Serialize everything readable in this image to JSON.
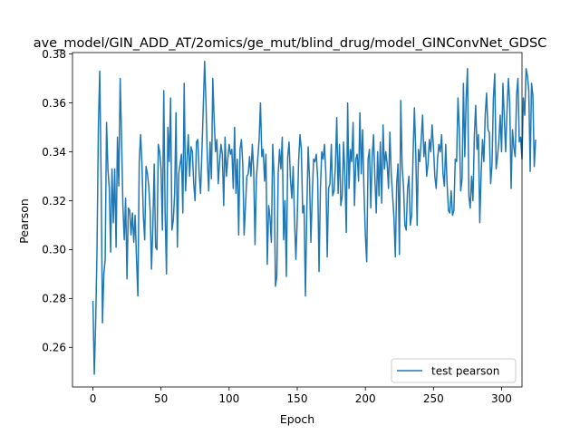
{
  "chart_data": {
    "type": "line",
    "title": "ave_model/GIN_ADD_AT/2omics/ge_mut/blind_drug/model_GINConvNet_GDSC",
    "xlabel": "Epoch",
    "ylabel": "Pearson",
    "xlim": [
      -15,
      315
    ],
    "ylim": [
      0.2438,
      0.3806
    ],
    "xticks": [
      0,
      50,
      100,
      150,
      200,
      250,
      300
    ],
    "xtick_labels": [
      "0",
      "50",
      "100",
      "150",
      "200",
      "250",
      "300"
    ],
    "yticks": [
      0.26,
      0.28,
      0.3,
      0.32,
      0.34,
      0.36,
      0.38
    ],
    "ytick_labels": [
      "0.26",
      "0.28",
      "0.30",
      "0.32",
      "0.34",
      "0.36",
      "0.38"
    ],
    "grid": false,
    "legend": {
      "position": "lower right"
    },
    "series": [
      {
        "name": "test pearson",
        "color": "#1f77b4",
        "x_start": 0,
        "x_step": 1,
        "y": [
          0.279,
          0.249,
          0.27,
          0.3,
          0.35,
          0.373,
          0.33,
          0.27,
          0.29,
          0.296,
          0.352,
          0.333,
          0.325,
          0.299,
          0.333,
          0.311,
          0.333,
          0.301,
          0.346,
          0.326,
          0.37,
          0.346,
          0.318,
          0.304,
          0.321,
          0.288,
          0.317,
          0.316,
          0.306,
          0.315,
          0.303,
          0.314,
          0.296,
          0.281,
          0.336,
          0.347,
          0.335,
          0.314,
          0.304,
          0.334,
          0.331,
          0.326,
          0.316,
          0.292,
          0.31,
          0.335,
          0.301,
          0.3,
          0.343,
          0.34,
          0.333,
          0.308,
          0.365,
          0.315,
          0.29,
          0.35,
          0.336,
          0.362,
          0.308,
          0.312,
          0.323,
          0.356,
          0.301,
          0.331,
          0.335,
          0.339,
          0.315,
          0.368,
          0.324,
          0.336,
          0.347,
          0.33,
          0.342,
          0.34,
          0.327,
          0.32,
          0.344,
          0.345,
          0.331,
          0.323,
          0.34,
          0.358,
          0.377,
          0.36,
          0.337,
          0.324,
          0.344,
          0.329,
          0.37,
          0.353,
          0.34,
          0.345,
          0.327,
          0.336,
          0.343,
          0.339,
          0.318,
          0.346,
          0.33,
          0.337,
          0.343,
          0.339,
          0.341,
          0.325,
          0.35,
          0.323,
          0.337,
          0.306,
          0.341,
          0.345,
          0.335,
          0.306,
          0.318,
          0.33,
          0.331,
          0.338,
          0.33,
          0.343,
          0.333,
          0.302,
          0.329,
          0.337,
          0.345,
          0.36,
          0.338,
          0.341,
          0.328,
          0.339,
          0.294,
          0.318,
          0.313,
          0.303,
          0.343,
          0.33,
          0.285,
          0.289,
          0.331,
          0.341,
          0.333,
          0.346,
          0.304,
          0.32,
          0.289,
          0.338,
          0.344,
          0.329,
          0.321,
          0.334,
          0.312,
          0.296,
          0.313,
          0.336,
          0.347,
          0.341,
          0.315,
          0.318,
          0.281,
          0.315,
          0.342,
          0.329,
          0.303,
          0.322,
          0.337,
          0.336,
          0.339,
          0.329,
          0.291,
          0.325,
          0.34,
          0.337,
          0.343,
          0.331,
          0.297,
          0.325,
          0.327,
          0.343,
          0.322,
          0.324,
          0.334,
          0.354,
          0.323,
          0.343,
          0.318,
          0.322,
          0.344,
          0.33,
          0.307,
          0.36,
          0.325,
          0.341,
          0.336,
          0.352,
          0.318,
          0.337,
          0.339,
          0.328,
          0.356,
          0.331,
          0.349,
          0.324,
          0.306,
          0.295,
          0.337,
          0.341,
          0.317,
          0.338,
          0.347,
          0.329,
          0.315,
          0.34,
          0.322,
          0.344,
          0.319,
          0.351,
          0.333,
          0.34,
          0.335,
          0.325,
          0.348,
          0.331,
          0.322,
          0.313,
          0.297,
          0.327,
          0.335,
          0.298,
          0.361,
          0.334,
          0.326,
          0.31,
          0.308,
          0.325,
          0.33,
          0.31,
          0.314,
          0.338,
          0.358,
          0.34,
          0.31,
          0.341,
          0.336,
          0.345,
          0.355,
          0.338,
          0.344,
          0.33,
          0.335,
          0.345,
          0.34,
          0.351,
          0.342,
          0.33,
          0.325,
          0.337,
          0.343,
          0.34,
          0.347,
          0.331,
          0.326,
          0.343,
          0.327,
          0.316,
          0.315,
          0.324,
          0.314,
          0.316,
          0.337,
          0.336,
          0.362,
          0.349,
          0.324,
          0.329,
          0.368,
          0.338,
          0.362,
          0.374,
          0.322,
          0.317,
          0.33,
          0.32,
          0.346,
          0.359,
          0.341,
          0.347,
          0.311,
          0.331,
          0.345,
          0.336,
          0.355,
          0.364,
          0.349,
          0.348,
          0.327,
          0.335,
          0.362,
          0.372,
          0.333,
          0.338,
          0.344,
          0.355,
          0.34,
          0.368,
          0.354,
          0.34,
          0.357,
          0.37,
          0.36,
          0.325,
          0.349,
          0.342,
          0.338,
          0.363,
          0.37,
          0.344,
          0.346,
          0.337,
          0.362,
          0.355,
          0.374,
          0.371,
          0.365,
          0.332,
          0.368,
          0.363,
          0.334,
          0.345
        ]
      }
    ]
  }
}
